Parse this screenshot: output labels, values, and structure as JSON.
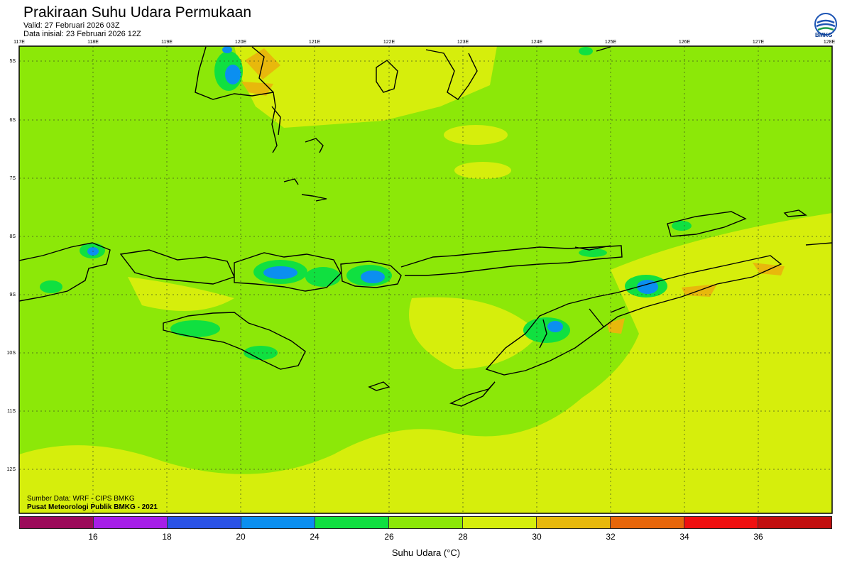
{
  "header": {
    "title": "Prakiraan Suhu Udara Permukaan",
    "valid": "Valid: 27 Februari 2026 03Z",
    "init": "Data inisial: 23 Februari 2026 12Z"
  },
  "logo": {
    "name": "bmkg-logo",
    "text": "BMKG"
  },
  "map": {
    "lon_ticks": [
      "117E",
      "118E",
      "119E",
      "120E",
      "121E",
      "122E",
      "123E",
      "124E",
      "125E",
      "126E",
      "127E",
      "128E"
    ],
    "lat_ticks": [
      "5S",
      "6S",
      "7S",
      "8S",
      "9S",
      "10S",
      "11S",
      "12S"
    ],
    "lon_range": [
      117,
      128
    ],
    "lat_range": [
      -4.8,
      -12.8
    ],
    "background_color": "#8ce808",
    "grid": "dotted"
  },
  "credits": {
    "line1": "Sumber Data: WRF - CIPS BMKG",
    "line2": "Pusat Meteorologi Publik BMKG - 2021"
  },
  "colorbar": {
    "title": "Suhu Udara (°C)",
    "colors": [
      "#9c0a5a",
      "#a61ee8",
      "#2a52e6",
      "#0b8ff0",
      "#10e040",
      "#8ce808",
      "#d6ee0c",
      "#e8b80c",
      "#e8660a",
      "#f00f0f",
      "#c20e0e"
    ],
    "labels": [
      "16",
      "18",
      "20",
      "24",
      "26",
      "28",
      "30",
      "32",
      "34",
      "36"
    ]
  }
}
